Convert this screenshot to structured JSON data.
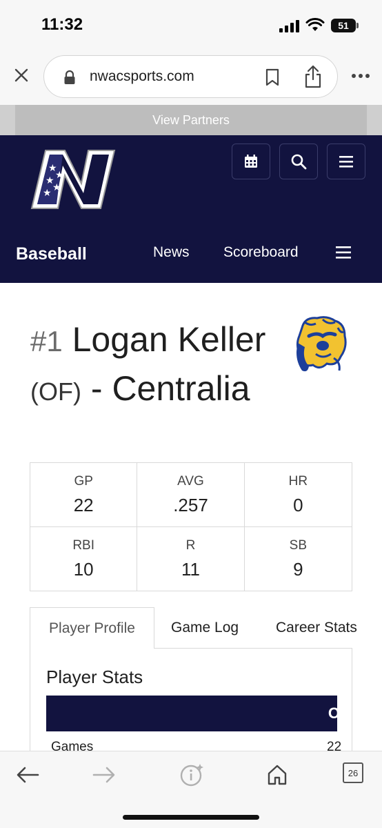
{
  "status_bar": {
    "time": "11:32",
    "battery": "51"
  },
  "browser": {
    "url": "nwacsports.com"
  },
  "partners": {
    "label": "View Partners"
  },
  "header": {
    "logo_letter": "N",
    "sport": "Baseball",
    "nav": {
      "news": "News",
      "scoreboard": "Scoreboard"
    }
  },
  "player": {
    "number": "#1",
    "first_name": "Logan",
    "last_name": "Keller",
    "position": "(OF)",
    "dash": "-",
    "team": "Centralia"
  },
  "stats": [
    {
      "label": "GP",
      "value": "22"
    },
    {
      "label": "AVG",
      "value": ".257"
    },
    {
      "label": "HR",
      "value": "0"
    },
    {
      "label": "RBI",
      "value": "10"
    },
    {
      "label": "R",
      "value": "11"
    },
    {
      "label": "SB",
      "value": "9"
    }
  ],
  "tabs": [
    {
      "label": "Player Profile"
    },
    {
      "label": "Game Log"
    },
    {
      "label": "Career Stats"
    }
  ],
  "panel": {
    "title": "Player Stats",
    "header_cut_text": "O",
    "rows": [
      {
        "label": "Games",
        "value": "22"
      }
    ]
  },
  "toolbar": {
    "tab_count": "26"
  },
  "colors": {
    "navy": "#12133f",
    "partners_gray": "#bdbdbd",
    "team_gold": "#f2c230",
    "team_blue": "#1d3f9a"
  }
}
